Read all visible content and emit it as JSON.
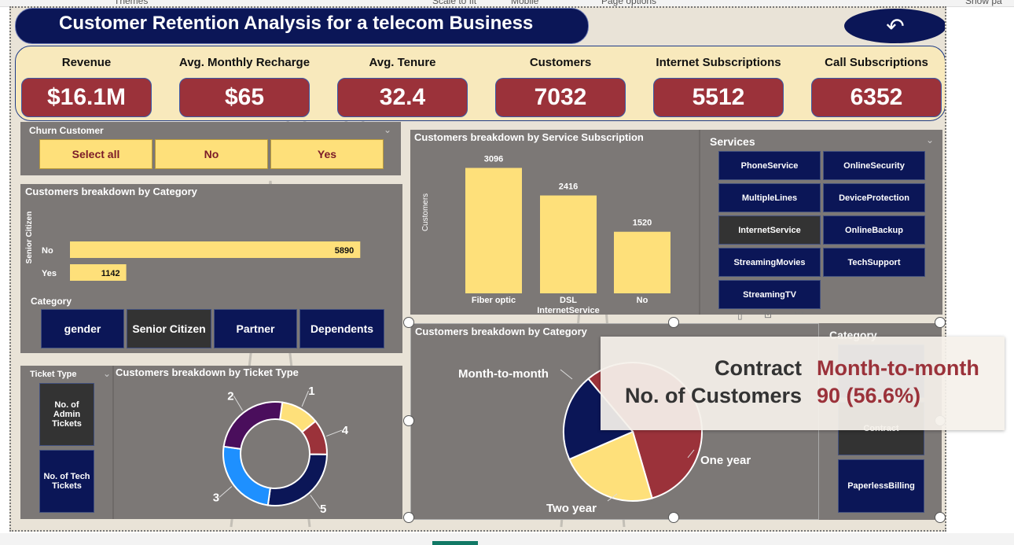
{
  "header": {
    "title": "Customer Retention Analysis for a telecom Business",
    "back_icon": "undo-arrow-icon",
    "ribbon_fragments": [
      "Themes",
      "Scale to fit",
      "Mobile",
      "Page options",
      "Show pa"
    ]
  },
  "kpis": [
    {
      "label": "Revenue",
      "value": "$16.1M"
    },
    {
      "label": "Avg. Monthly Recharge",
      "value": "$65"
    },
    {
      "label": "Avg. Tenure",
      "value": "32.4"
    },
    {
      "label": "Customers",
      "value": "7032"
    },
    {
      "label": "Internet Subscriptions",
      "value": "5512"
    },
    {
      "label": "Call Subscriptions",
      "value": "6352"
    }
  ],
  "churn_slicer": {
    "title": "Churn Customer",
    "options": [
      "Select all",
      "No",
      "Yes"
    ]
  },
  "category_slicer": {
    "title": "Category",
    "options": [
      "gender",
      "Senior Citizen",
      "Partner",
      "Dependents"
    ],
    "selected": "Senior Citizen"
  },
  "ticket_slicer": {
    "title": "Ticket Type",
    "options": [
      "No. of Admin Tickets",
      "No. of Tech Tickets"
    ]
  },
  "services_slicer": {
    "title": "Services",
    "options": [
      "PhoneService",
      "OnlineSecurity",
      "MultipleLines",
      "DeviceProtection",
      "InternetService",
      "OnlineBackup",
      "StreamingMovies",
      "TechSupport",
      "StreamingTV"
    ],
    "selected": "InternetService"
  },
  "contract_category_slicer": {
    "title": "Category",
    "visible_options": [
      "Contract",
      "PaperlessBilling"
    ],
    "selected": "Contract"
  },
  "tooltip": {
    "field_label": "Contract",
    "field_value": "Month-to-month",
    "measure_label": "No. of Customers",
    "measure_value": "90 (56.6%)"
  },
  "colors": {
    "navy": "#0b1657",
    "maroon": "#9b323a",
    "yellow": "#fee07a",
    "blue": "#1e90ff",
    "purple": "#4a0e5c",
    "panel": "#7c7876"
  },
  "chart_data": [
    {
      "type": "bar",
      "orientation": "horizontal",
      "title": "Customers breakdown by Category",
      "ylabel": "Senior Citizen",
      "categories": [
        "No",
        "Yes"
      ],
      "values": [
        5890,
        1142
      ],
      "data_labels": [
        "5890",
        "1142"
      ],
      "xlim": [
        0,
        6300
      ]
    },
    {
      "type": "bar",
      "title": "Customers breakdown by Service Subscription",
      "ylabel": "Customers",
      "xlabel": "InternetService",
      "categories": [
        "Fiber optic",
        "DSL",
        "No"
      ],
      "values": [
        3096,
        2416,
        1520
      ],
      "data_labels": [
        "3096",
        "2416",
        "1520"
      ],
      "ylim": [
        0,
        3300
      ]
    },
    {
      "type": "pie",
      "donut": true,
      "title": "Customers breakdown by Ticket Type",
      "categories": [
        "1",
        "4",
        "5",
        "3",
        "2"
      ],
      "values": [
        12,
        11,
        27,
        25,
        25
      ],
      "colors": [
        "#fee07a",
        "#9b323a",
        "#0b1657",
        "#1e90ff",
        "#4a0e5c"
      ]
    },
    {
      "type": "pie",
      "title": "Customers breakdown by Category",
      "categories": [
        "Month-to-month",
        "One year",
        "Two year"
      ],
      "values": [
        56.6,
        23,
        20.4
      ],
      "colors": [
        "#9b323a",
        "#fee07a",
        "#0b1657"
      ]
    }
  ]
}
